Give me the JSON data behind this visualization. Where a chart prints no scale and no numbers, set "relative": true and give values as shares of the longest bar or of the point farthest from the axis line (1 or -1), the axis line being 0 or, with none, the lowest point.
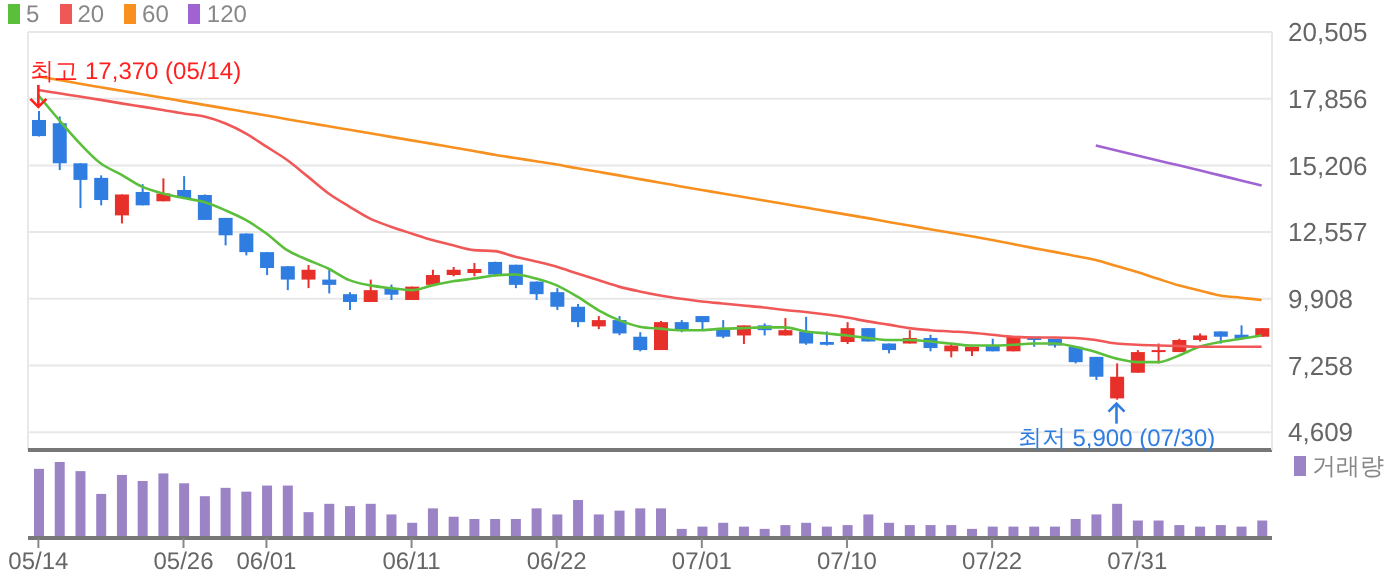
{
  "chart_data": [
    {
      "type": "candlestick",
      "categories": [
        "05/14",
        null,
        null,
        null,
        null,
        null,
        null,
        "05/26",
        null,
        null,
        null,
        "06/01",
        null,
        null,
        null,
        null,
        null,
        null,
        "06/11",
        null,
        null,
        null,
        null,
        null,
        null,
        "06/22",
        null,
        null,
        null,
        null,
        null,
        null,
        "07/01",
        null,
        null,
        null,
        null,
        null,
        null,
        "07/10",
        null,
        null,
        null,
        null,
        null,
        null,
        "07/22",
        null,
        null,
        null,
        null,
        null,
        null,
        "07/31",
        null,
        null,
        null,
        null,
        null,
        null
      ],
      "ohlc": [
        [
          17010,
          17370,
          16350,
          16370
        ],
        [
          16880,
          17150,
          15020,
          15290
        ],
        [
          15290,
          15290,
          13510,
          14630
        ],
        [
          14710,
          14810,
          13620,
          13830
        ],
        [
          13220,
          14050,
          12900,
          14050
        ],
        [
          14150,
          14460,
          13620,
          13620
        ],
        [
          13780,
          14690,
          13780,
          14090
        ],
        [
          14230,
          14780,
          13910,
          13910
        ],
        [
          14030,
          14050,
          13040,
          13040
        ],
        [
          13120,
          13120,
          12030,
          12430
        ],
        [
          12500,
          12500,
          11630,
          11760
        ],
        [
          11760,
          11760,
          10850,
          11130
        ],
        [
          11200,
          11200,
          10250,
          10670
        ],
        [
          10670,
          11250,
          10330,
          11060
        ],
        [
          10670,
          11060,
          10120,
          10460
        ],
        [
          10090,
          10170,
          9460,
          9780
        ],
        [
          9780,
          10670,
          9780,
          10250
        ],
        [
          10330,
          10470,
          9860,
          10070
        ],
        [
          9860,
          10390,
          9860,
          10390
        ],
        [
          10460,
          11060,
          10460,
          10850
        ],
        [
          10850,
          11170,
          10800,
          11060
        ],
        [
          10930,
          11330,
          10800,
          11090
        ],
        [
          11370,
          11380,
          10800,
          10870
        ],
        [
          11260,
          11260,
          10330,
          10460
        ],
        [
          10590,
          10600,
          9860,
          10090
        ],
        [
          10170,
          10330,
          9460,
          9590
        ],
        [
          9590,
          9700,
          8780,
          8980
        ],
        [
          8810,
          9220,
          8700,
          9060
        ],
        [
          9060,
          9220,
          8460,
          8530
        ],
        [
          8400,
          8580,
          7820,
          7870
        ],
        [
          7870,
          9020,
          7870,
          8980
        ],
        [
          8980,
          9060,
          8580,
          8660
        ],
        [
          9220,
          9220,
          8660,
          8980
        ],
        [
          8740,
          9060,
          8340,
          8400
        ],
        [
          8450,
          8850,
          8110,
          8850
        ],
        [
          8850,
          8930,
          8450,
          8660
        ],
        [
          8450,
          9140,
          8450,
          8660
        ],
        [
          8610,
          9190,
          8080,
          8130
        ],
        [
          8190,
          8610,
          8050,
          8080
        ],
        [
          8190,
          8980,
          8110,
          8740
        ],
        [
          8740,
          8740,
          8210,
          8210
        ],
        [
          8130,
          8130,
          7740,
          7870
        ],
        [
          8130,
          8660,
          8130,
          8350
        ],
        [
          8350,
          8480,
          7820,
          7950
        ],
        [
          7820,
          8130,
          7580,
          8050
        ],
        [
          7820,
          8000,
          7630,
          8000
        ],
        [
          8050,
          8320,
          7820,
          7820
        ],
        [
          7820,
          8400,
          7820,
          8400
        ],
        [
          8400,
          8400,
          8000,
          8270
        ],
        [
          8320,
          8320,
          7970,
          8050
        ],
        [
          8000,
          8000,
          7340,
          7390
        ],
        [
          7600,
          7600,
          6680,
          6810
        ],
        [
          5950,
          7340,
          5900,
          6810
        ],
        [
          6970,
          7870,
          6970,
          7790
        ],
        [
          7790,
          8130,
          7340,
          7870
        ],
        [
          7790,
          8320,
          7790,
          8270
        ],
        [
          8270,
          8530,
          8210,
          8450
        ],
        [
          8610,
          8610,
          8130,
          8400
        ],
        [
          8480,
          8850,
          8270,
          8320
        ],
        [
          8400,
          8740,
          8400,
          8740
        ]
      ],
      "colors": [
        "#2f7de1",
        "#2f7de1",
        "#2f7de1",
        "#2f7de1",
        "#e8302a",
        "#2f7de1",
        "#e8302a",
        "#2f7de1",
        "#2f7de1",
        "#2f7de1",
        "#2f7de1",
        "#2f7de1",
        "#2f7de1",
        "#e8302a",
        "#2f7de1",
        "#2f7de1",
        "#e8302a",
        "#2f7de1",
        "#e8302a",
        "#e8302a",
        "#e8302a",
        "#e8302a",
        "#2f7de1",
        "#2f7de1",
        "#2f7de1",
        "#2f7de1",
        "#2f7de1",
        "#e8302a",
        "#2f7de1",
        "#2f7de1",
        "#e8302a",
        "#2f7de1",
        "#2f7de1",
        "#2f7de1",
        "#e8302a",
        "#2f7de1",
        "#e8302a",
        "#2f7de1",
        "#2f7de1",
        "#e8302a",
        "#2f7de1",
        "#2f7de1",
        "#e8302a",
        "#2f7de1",
        "#e8302a",
        "#e8302a",
        "#2f7de1",
        "#e8302a",
        "#2f7de1",
        "#2f7de1",
        "#2f7de1",
        "#2f7de1",
        "#e8302a",
        "#e8302a",
        "#e8302a",
        "#e8302a",
        "#e8302a",
        "#2f7de1",
        "#2f7de1",
        "#e8302a"
      ],
      "series": [
        {
          "name": "5",
          "type": "line",
          "color": "#5cbf3c",
          "values": [
            17990,
            17010,
            16080,
            15290,
            14840,
            14360,
            14090,
            13910,
            13750,
            13430,
            13040,
            12500,
            11840,
            11450,
            11100,
            10650,
            10440,
            10330,
            10250,
            10440,
            10600,
            10710,
            10830,
            10870,
            10710,
            10440,
            9990,
            9460,
            9060,
            8800,
            8720,
            8660,
            8660,
            8720,
            8740,
            8770,
            8770,
            8610,
            8530,
            8450,
            8350,
            8270,
            8270,
            8210,
            8130,
            8050,
            8050,
            8080,
            8130,
            8130,
            8000,
            7790,
            7530,
            7390,
            7390,
            7650,
            8000,
            8190,
            8320,
            8450
          ]
        },
        {
          "name": "20",
          "type": "line",
          "color": "#f05858",
          "values": [
            18200,
            18070,
            17940,
            17810,
            17670,
            17540,
            17410,
            17270,
            17150,
            16880,
            16480,
            15950,
            15420,
            14760,
            14090,
            13570,
            13090,
            12770,
            12500,
            12240,
            12030,
            11840,
            11800,
            11580,
            11390,
            11180,
            10910,
            10650,
            10390,
            10200,
            10040,
            9910,
            9800,
            9720,
            9640,
            9560,
            9460,
            9380,
            9280,
            9160,
            9010,
            8880,
            8740,
            8660,
            8610,
            8560,
            8480,
            8400,
            8370,
            8370,
            8350,
            8270,
            8130,
            8080,
            8050,
            8030,
            8000,
            8000,
            8000,
            8000
          ]
        },
        {
          "name": "60",
          "type": "line",
          "color": "#f7901e",
          "values": [
            18740,
            18600,
            18450,
            18310,
            18170,
            18030,
            17890,
            17750,
            17610,
            17470,
            17330,
            17190,
            17040,
            16900,
            16760,
            16620,
            16480,
            16340,
            16200,
            16060,
            15920,
            15780,
            15630,
            15500,
            15370,
            15240,
            15090,
            14950,
            14810,
            14660,
            14520,
            14370,
            14230,
            14090,
            13950,
            13810,
            13670,
            13530,
            13390,
            13250,
            13110,
            12960,
            12820,
            12670,
            12530,
            12390,
            12240,
            12080,
            11920,
            11770,
            11610,
            11450,
            11210,
            10970,
            10700,
            10440,
            10240,
            10040,
            9950,
            9860
          ]
        },
        {
          "name": "120",
          "type": "line",
          "color": "#a064d2",
          "values": [
            null,
            null,
            null,
            null,
            null,
            null,
            null,
            null,
            null,
            null,
            null,
            null,
            null,
            null,
            null,
            null,
            null,
            null,
            null,
            null,
            null,
            null,
            null,
            null,
            null,
            null,
            null,
            null,
            null,
            null,
            null,
            null,
            null,
            null,
            null,
            null,
            null,
            null,
            null,
            null,
            null,
            null,
            null,
            null,
            null,
            null,
            null,
            null,
            null,
            null,
            null,
            16000,
            15800,
            15600,
            15400,
            15210,
            15010,
            14810,
            14610,
            14410
          ]
        }
      ],
      "ylim": [
        3900,
        20505
      ],
      "yticks": [
        {
          "value": 4609,
          "label": "4,609"
        },
        {
          "value": 7258,
          "label": "7,258"
        },
        {
          "value": 9908,
          "label": "9,908"
        },
        {
          "value": 12557,
          "label": "12,557"
        },
        {
          "value": 15206,
          "label": "15,206"
        },
        {
          "value": 17856,
          "label": "17,856"
        },
        {
          "value": 20505,
          "label": "20,505"
        }
      ],
      "grid": true,
      "legend": "top left",
      "marker": "none",
      "tick_labels": "y",
      "annotations": [
        {
          "text": "최고 17,370 (05/14)",
          "x": "05/14",
          "y": 17370
        },
        {
          "text": "최저 5,900 (07/30)",
          "y": 5900
        }
      ]
    },
    {
      "type": "bar",
      "relative": true,
      "categories": [
        "05/14",
        null,
        null,
        null,
        null,
        null,
        null,
        "05/26",
        null,
        null,
        null,
        "06/01",
        null,
        null,
        null,
        null,
        null,
        null,
        "06/11",
        null,
        null,
        null,
        null,
        null,
        null,
        "06/22",
        null,
        null,
        null,
        null,
        null,
        null,
        "07/01",
        null,
        null,
        null,
        null,
        null,
        null,
        "07/10",
        null,
        null,
        null,
        null,
        null,
        null,
        "07/22",
        null,
        null,
        null,
        null,
        null,
        null,
        "07/31",
        null,
        null,
        null,
        null,
        null,
        null
      ],
      "series": [
        {
          "name": "거래량",
          "color": "#9b84c6",
          "values": [
            0.91,
            1,
            0.88,
            0.58,
            0.83,
            0.75,
            0.85,
            0.72,
            0.55,
            0.66,
            0.61,
            0.69,
            0.69,
            0.34,
            0.45,
            0.42,
            0.45,
            0.31,
            0.2,
            0.39,
            0.28,
            0.25,
            0.25,
            0.25,
            0.39,
            0.31,
            0.5,
            0.31,
            0.36,
            0.39,
            0.39,
            0.12,
            0.15,
            0.2,
            0.15,
            0.12,
            0.17,
            0.2,
            0.15,
            0.17,
            0.31,
            0.2,
            0.17,
            0.17,
            0.17,
            0.12,
            0.15,
            0.15,
            0.15,
            0.15,
            0.25,
            0.31,
            0.45,
            0.23,
            0.23,
            0.17,
            0.15,
            0.17,
            0.15,
            0.23
          ]
        }
      ],
      "legend": "top right",
      "tick_labels": "x"
    }
  ]
}
